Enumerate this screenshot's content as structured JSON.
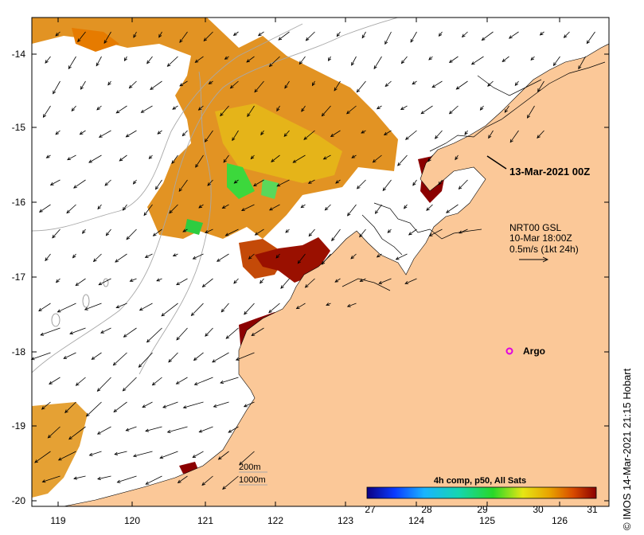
{
  "map": {
    "region": "North-west Australian coast, Kimberley",
    "lon_ticks": [
      "119",
      "120",
      "121",
      "122",
      "123",
      "124",
      "125",
      "126"
    ],
    "lat_ticks": [
      "-14",
      "-15",
      "-16",
      "-17",
      "-18",
      "-19",
      "-20"
    ],
    "lon_range": [
      118.65,
      126.7
    ],
    "lat_range": [
      -20.1,
      -13.6
    ]
  },
  "annotations": {
    "snapshot_label": "13-Mar-2021 00Z",
    "current_product": "NRT00 GSL",
    "current_time": "10-Mar 18:00Z",
    "current_scale": "0.5m/s (1kt 24h)",
    "argo_label": "Argo"
  },
  "bathymetry_legend": {
    "contour_200": "200m",
    "contour_1000": "1000m"
  },
  "sst_legend": {
    "title": "4h comp, p50, All Sats",
    "ticks": [
      "27",
      "28",
      "29",
      "30",
      "31"
    ],
    "min": 27,
    "max": 31
  },
  "credit": "© IMOS 14-Mar-2021 21:15 Hobart",
  "colors": {
    "land": "#fbc898",
    "ocean": "#ffffff",
    "sst_cold": "#0b0082",
    "sst_hot": "#8b0000",
    "argo": "#e000e0"
  }
}
